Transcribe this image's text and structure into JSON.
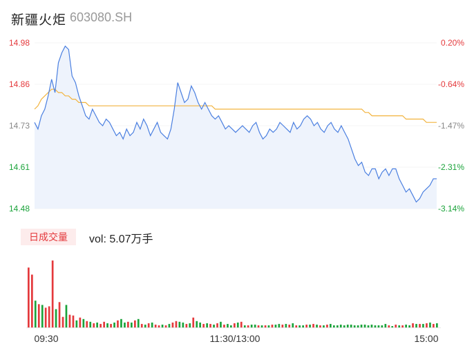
{
  "header": {
    "name": "新疆火炬",
    "code": "603080.SH"
  },
  "volume_panel": {
    "tab_label": "日成交量",
    "vol_text": "vol: 5.07万手"
  },
  "colors": {
    "up": "#e4393c",
    "down": "#1aa33a",
    "price_line": "#4a7fe0",
    "avg_line": "#f2b33d",
    "area": "#eef3fc"
  },
  "chart_data": [
    {
      "type": "line",
      "title": "",
      "y_ticks": [
        "14.98",
        "14.86",
        "14.73",
        "14.61",
        "14.48"
      ],
      "pct_ticks": [
        "0.20%",
        "-0.64%",
        "-1.47%",
        "-2.31%",
        "-3.14%"
      ],
      "ylim": [
        14.48,
        14.98
      ],
      "x_ticks": [
        "09:30",
        "11:30/13:00",
        "15:00"
      ],
      "series": [
        {
          "values": [
            14.74,
            14.72,
            14.76,
            14.78,
            14.82,
            14.87,
            14.83,
            14.92,
            14.95,
            14.97,
            14.96,
            14.88,
            14.86,
            14.82,
            14.79,
            14.76,
            14.75,
            14.78,
            14.76,
            14.74,
            14.73,
            14.75,
            14.74,
            14.72,
            14.7,
            14.71,
            14.69,
            14.72,
            14.7,
            14.71,
            14.74,
            14.72,
            14.75,
            14.73,
            14.7,
            14.72,
            14.74,
            14.71,
            14.7,
            14.69,
            14.72,
            14.78,
            14.86,
            14.83,
            14.8,
            14.81,
            14.85,
            14.83,
            14.8,
            14.78,
            14.8,
            14.78,
            14.76,
            14.75,
            14.76,
            14.74,
            14.72,
            14.73,
            14.72,
            14.71,
            14.72,
            14.73,
            14.72,
            14.71,
            14.73,
            14.74,
            14.71,
            14.69,
            14.7,
            14.72,
            14.71,
            14.72,
            14.74,
            14.73,
            14.72,
            14.71,
            14.74,
            14.72,
            14.73,
            14.75,
            14.76,
            14.75,
            14.73,
            14.74,
            14.72,
            14.71,
            14.73,
            14.74,
            14.72,
            14.71,
            14.73,
            14.71,
            14.69,
            14.66,
            14.63,
            14.61,
            14.62,
            14.59,
            14.58,
            14.6,
            14.6,
            14.57,
            14.59,
            14.6,
            14.58,
            14.6,
            14.6,
            14.57,
            14.55,
            14.53,
            14.54,
            14.52,
            14.5,
            14.51,
            14.53,
            14.54,
            14.55,
            14.57,
            14.57
          ]
        },
        {
          "values": [
            14.78,
            14.79,
            14.81,
            14.82,
            14.83,
            14.84,
            14.84,
            14.83,
            14.83,
            14.82,
            14.82,
            14.81,
            14.81,
            14.8,
            14.8,
            14.8,
            14.79,
            14.79,
            14.79,
            14.79,
            14.79,
            14.79,
            14.79,
            14.79,
            14.79,
            14.79,
            14.79,
            14.79,
            14.79,
            14.79,
            14.79,
            14.79,
            14.79,
            14.79,
            14.79,
            14.79,
            14.79,
            14.79,
            14.79,
            14.79,
            14.79,
            14.79,
            14.79,
            14.79,
            14.79,
            14.79,
            14.79,
            14.79,
            14.79,
            14.79,
            14.79,
            14.79,
            14.79,
            14.78,
            14.78,
            14.78,
            14.78,
            14.78,
            14.78,
            14.78,
            14.78,
            14.78,
            14.78,
            14.78,
            14.78,
            14.78,
            14.78,
            14.78,
            14.78,
            14.78,
            14.78,
            14.78,
            14.78,
            14.78,
            14.78,
            14.78,
            14.78,
            14.78,
            14.78,
            14.78,
            14.78,
            14.78,
            14.78,
            14.78,
            14.78,
            14.78,
            14.78,
            14.78,
            14.78,
            14.78,
            14.78,
            14.78,
            14.78,
            14.78,
            14.78,
            14.78,
            14.78,
            14.77,
            14.77,
            14.76,
            14.76,
            14.76,
            14.76,
            14.76,
            14.76,
            14.76,
            14.76,
            14.76,
            14.76,
            14.75,
            14.75,
            14.75,
            14.75,
            14.75,
            14.75,
            14.74,
            14.74,
            14.74,
            14.74
          ]
        }
      ]
    },
    {
      "type": "bar",
      "title": "",
      "values": [
        85,
        75,
        38,
        33,
        32,
        28,
        30,
        95,
        26,
        36,
        15,
        32,
        18,
        17,
        10,
        14,
        12,
        9,
        8,
        6,
        7,
        5,
        8,
        6,
        5,
        7,
        10,
        12,
        7,
        8,
        7,
        10,
        12,
        5,
        4,
        6,
        7,
        4,
        3,
        4,
        3,
        5,
        7,
        9,
        8,
        7,
        5,
        6,
        14,
        9,
        7,
        5,
        6,
        5,
        4,
        6,
        8,
        4,
        5,
        3,
        6,
        7,
        8,
        3,
        3,
        4,
        4,
        3,
        3,
        3,
        3,
        4,
        4,
        5,
        4,
        5,
        4,
        6,
        3,
        3,
        3,
        4,
        4,
        5,
        4,
        3,
        3,
        4,
        5,
        3,
        3,
        4,
        3,
        4,
        4,
        3,
        3,
        4,
        4,
        3,
        4,
        3,
        3,
        3,
        5,
        3,
        2,
        4,
        3,
        3,
        4,
        3,
        6,
        5,
        5,
        5,
        6,
        7,
        5,
        6
      ],
      "colors_seq": [
        "u",
        "u",
        "d",
        "u",
        "d",
        "u",
        "u",
        "u",
        "d",
        "u",
        "u",
        "d",
        "u",
        "u",
        "d",
        "u",
        "d",
        "u",
        "d",
        "u",
        "d",
        "u",
        "u",
        "d",
        "u",
        "d",
        "u",
        "d",
        "d",
        "u",
        "d",
        "u",
        "d",
        "u",
        "d",
        "u",
        "d",
        "u",
        "u",
        "d",
        "u",
        "d",
        "u",
        "u",
        "d",
        "d",
        "u",
        "d",
        "u",
        "d",
        "d",
        "u",
        "d",
        "u",
        "d",
        "u",
        "d",
        "u",
        "d",
        "d",
        "u",
        "d",
        "u",
        "d",
        "u",
        "d",
        "d",
        "u",
        "d",
        "u",
        "d",
        "u",
        "d",
        "d",
        "u",
        "d",
        "u",
        "d",
        "u",
        "d",
        "d",
        "u",
        "d",
        "u",
        "d",
        "u",
        "d",
        "u",
        "d",
        "d",
        "d",
        "d",
        "d",
        "d",
        "d",
        "d",
        "d",
        "d",
        "d",
        "d",
        "d",
        "d",
        "d",
        "d",
        "d",
        "u",
        "d",
        "u",
        "d",
        "u",
        "d",
        "d",
        "u",
        "d",
        "u",
        "d",
        "u",
        "d",
        "u",
        "d"
      ]
    }
  ]
}
